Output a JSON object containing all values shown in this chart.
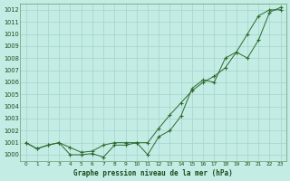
{
  "title": "Graphe pression niveau de la mer (hPa)",
  "background_color": "#c2ece4",
  "grid_color": "#a8d8d0",
  "line_color": "#2d6a2d",
  "marker_color": "#2d6a2d",
  "xlim": [
    -0.5,
    23.5
  ],
  "ylim": [
    999.5,
    1012.5
  ],
  "yticks": [
    1000,
    1001,
    1002,
    1003,
    1004,
    1005,
    1006,
    1007,
    1008,
    1009,
    1010,
    1011,
    1012
  ],
  "xticks": [
    0,
    1,
    2,
    3,
    4,
    5,
    6,
    7,
    8,
    9,
    10,
    11,
    12,
    13,
    14,
    15,
    16,
    17,
    18,
    19,
    20,
    21,
    22,
    23
  ],
  "series1_x": [
    0,
    1,
    2,
    3,
    4,
    5,
    6,
    7,
    8,
    9,
    10,
    11,
    12,
    13,
    14,
    15,
    16,
    17,
    18,
    19,
    20,
    21,
    22,
    23
  ],
  "series1_y": [
    1001.0,
    1000.5,
    1000.8,
    1001.0,
    1000.6,
    1000.2,
    1000.3,
    1000.8,
    1001.0,
    1001.0,
    1001.0,
    1001.0,
    1002.2,
    1003.3,
    1004.3,
    1005.3,
    1006.0,
    1006.5,
    1007.2,
    1008.5,
    1010.0,
    1011.5,
    1012.0,
    1012.0
  ],
  "series2_x": [
    0,
    1,
    2,
    3,
    4,
    5,
    6,
    7,
    8,
    9,
    10,
    11,
    12,
    13,
    14,
    15,
    16,
    17,
    18,
    19,
    20,
    21,
    22,
    23
  ],
  "series2_y": [
    1001.0,
    1000.5,
    1000.8,
    1001.0,
    1000.0,
    1000.0,
    1000.1,
    999.8,
    1000.8,
    1000.8,
    1001.0,
    1000.0,
    1001.5,
    1002.0,
    1003.2,
    1005.5,
    1006.2,
    1006.0,
    1008.0,
    1008.5,
    1008.0,
    1009.5,
    1011.8,
    1012.2
  ]
}
